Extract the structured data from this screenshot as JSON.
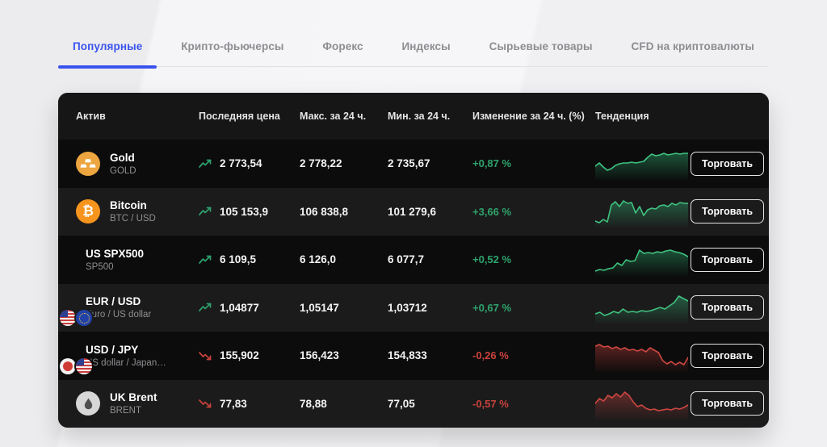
{
  "tabs": [
    {
      "label": "Популярные",
      "active": true
    },
    {
      "label": "Крипто-фьючерсы",
      "active": false
    },
    {
      "label": "Форекс",
      "active": false
    },
    {
      "label": "Индексы",
      "active": false
    },
    {
      "label": "Сырьевые товары",
      "active": false
    },
    {
      "label": "CFD на криптовалюты",
      "active": false
    }
  ],
  "table": {
    "headers": {
      "asset": "Актив",
      "last_price": "Последняя цена",
      "high_24h": "Макс. за 24 ч.",
      "low_24h": "Мин. за 24 ч.",
      "change_24h": "Изменение за 24 ч. (%)",
      "trend": "Тенденция"
    },
    "trade_button_label": "Торговать",
    "rows": [
      {
        "name": "Gold",
        "ticker": "GOLD",
        "icon": "gold-bars",
        "last": "2 773,54",
        "high": "2 778,22",
        "low": "2 735,67",
        "change": "+0,87 %",
        "direction": "up",
        "trend": [
          23,
          19,
          24,
          28,
          26,
          22,
          20,
          19,
          19,
          18,
          19,
          18,
          17,
          12,
          8,
          10,
          9,
          7,
          9,
          8,
          7,
          8,
          7,
          7
        ]
      },
      {
        "name": "Bitcoin",
        "ticker": "BTC / USD",
        "icon": "bitcoin",
        "last": "105 153,9",
        "high": "106 838,8",
        "low": "101 279,6",
        "change": "+3,66 %",
        "direction": "up",
        "trend": [
          32,
          34,
          30,
          33,
          12,
          8,
          14,
          7,
          10,
          9,
          22,
          14,
          25,
          18,
          16,
          17,
          13,
          12,
          14,
          10,
          12,
          9,
          10,
          10
        ]
      },
      {
        "name": "US SPX500",
        "ticker": "SP500",
        "icon": "us-flag",
        "last": "6 109,5",
        "high": "6 126,0",
        "low": "6 077,7",
        "change": "+0,52 %",
        "direction": "up",
        "trend": [
          34,
          32,
          33,
          31,
          30,
          24,
          27,
          20,
          22,
          21,
          8,
          12,
          11,
          12,
          10,
          11,
          9,
          8,
          10,
          11,
          13,
          16
        ]
      },
      {
        "name": "EUR / USD",
        "ticker": "Euro / US dollar",
        "icon": "eu-us-flags",
        "last": "1,04877",
        "high": "1,05147",
        "low": "1,03712",
        "change": "+0,67 %",
        "direction": "up",
        "trend": [
          28,
          26,
          30,
          28,
          25,
          27,
          22,
          26,
          25,
          26,
          24,
          25,
          24,
          22,
          20,
          22,
          18,
          14,
          6,
          9,
          12
        ]
      },
      {
        "name": "USD / JPY",
        "ticker": "US dollar / Japan…",
        "icon": "us-jp-flags",
        "last": "155,902",
        "high": "156,423",
        "low": "154,833",
        "change": "-0,26 %",
        "direction": "down",
        "trend": [
          8,
          6,
          9,
          8,
          11,
          9,
          12,
          10,
          13,
          12,
          14,
          12,
          15,
          10,
          13,
          16,
          26,
          30,
          27,
          31,
          28,
          31,
          22
        ]
      },
      {
        "name": "UK Brent",
        "ticker": "BRENT",
        "icon": "oil-drop",
        "last": "77,83",
        "high": "78,88",
        "low": "77,05",
        "change": "-0,57 %",
        "direction": "down",
        "trend": [
          20,
          14,
          17,
          10,
          13,
          8,
          12,
          6,
          10,
          18,
          24,
          22,
          26,
          28,
          27,
          29,
          28,
          27,
          28,
          26,
          27,
          25,
          22
        ]
      }
    ]
  },
  "colors": {
    "accent": "#3a53ee",
    "up_text": "#2ea36c",
    "down_text": "#c9423d",
    "up_line": "#3fc380",
    "down_line": "#cf4742"
  }
}
